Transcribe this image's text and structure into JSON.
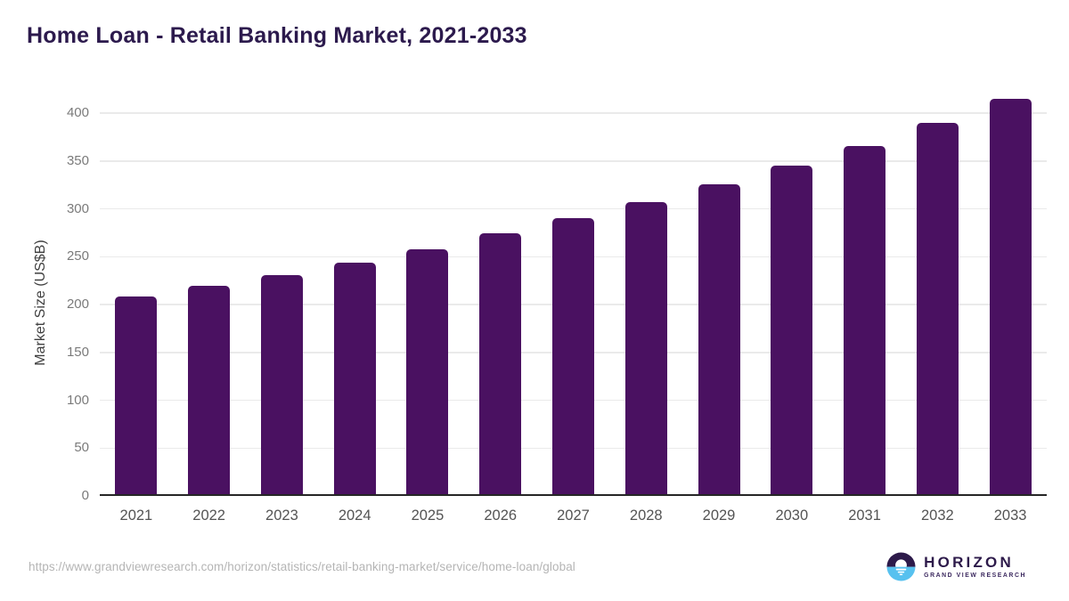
{
  "title": "Home Loan - Retail Banking Market, 2021-2033",
  "chart_data": {
    "type": "bar",
    "title": "Home Loan - Retail Banking Market, 2021-2033",
    "categories": [
      "2021",
      "2022",
      "2023",
      "2024",
      "2025",
      "2026",
      "2027",
      "2028",
      "2029",
      "2030",
      "2031",
      "2032",
      "2033"
    ],
    "values": [
      208,
      220,
      231,
      244,
      258,
      274,
      290,
      307,
      326,
      345,
      366,
      390,
      415
    ],
    "xlabel": "",
    "ylabel": "Market Size (US$B)",
    "ylim": [
      0,
      430
    ],
    "yticks": [
      0,
      50,
      100,
      150,
      200,
      250,
      300,
      350,
      400
    ],
    "grid": true,
    "legend": false,
    "bar_color": "#4a1161"
  },
  "footer": {
    "source_url": "https://www.grandviewresearch.com/horizon/statistics/retail-banking-market/service/home-loan/global",
    "logo": {
      "name": "HORIZON",
      "subtitle": "GRAND VIEW RESEARCH"
    }
  },
  "colors": {
    "title_purple": "#2c1a4d",
    "bar_purple": "#4a1161",
    "axis_line": "#262626",
    "gridline": "#eaeaea",
    "ytick_gray": "#7a7a7a",
    "xtick_gray": "#545454",
    "url_gray": "#b5b5b5",
    "logo_purple": "#2d1a4a",
    "logo_blue": "#57c1ef"
  }
}
